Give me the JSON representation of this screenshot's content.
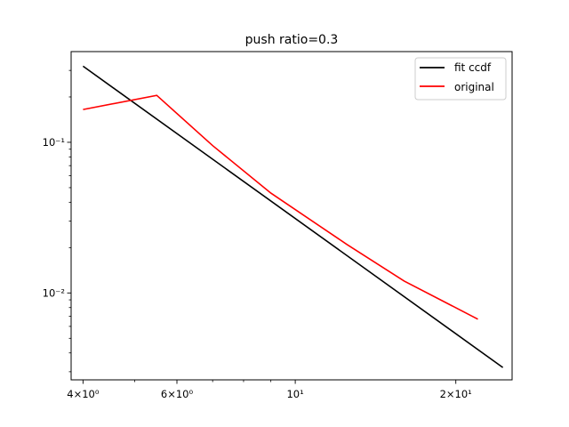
{
  "chart_data": {
    "type": "line",
    "title": "push ratio=0.3",
    "xlabel": "",
    "ylabel": "",
    "xscale": "log",
    "yscale": "log",
    "xlim": [
      3.8,
      25.5
    ],
    "ylim": [
      0.00265,
      0.4
    ],
    "grid": false,
    "legend_position": "top-right",
    "x_ticks": [
      {
        "value": 4,
        "label": "4×10⁰"
      },
      {
        "value": 6,
        "label": "6×10⁰"
      },
      {
        "value": 10,
        "label": "10¹"
      },
      {
        "value": 20,
        "label": "2×10¹"
      }
    ],
    "y_ticks": [
      {
        "value": 0.1,
        "label": "10⁻¹"
      },
      {
        "value": 0.01,
        "label": "10⁻²"
      }
    ],
    "series": [
      {
        "name": "fit ccdf",
        "color": "#000000",
        "points": [
          [
            4.0,
            0.32
          ],
          [
            24.5,
            0.0032
          ]
        ]
      },
      {
        "name": "original",
        "color": "#ff0000",
        "points": [
          [
            4.0,
            0.165
          ],
          [
            5.5,
            0.205
          ],
          [
            7.0,
            0.095
          ],
          [
            9.0,
            0.046
          ],
          [
            12.5,
            0.021
          ],
          [
            16.0,
            0.012
          ],
          [
            22.0,
            0.0067
          ]
        ]
      }
    ]
  }
}
